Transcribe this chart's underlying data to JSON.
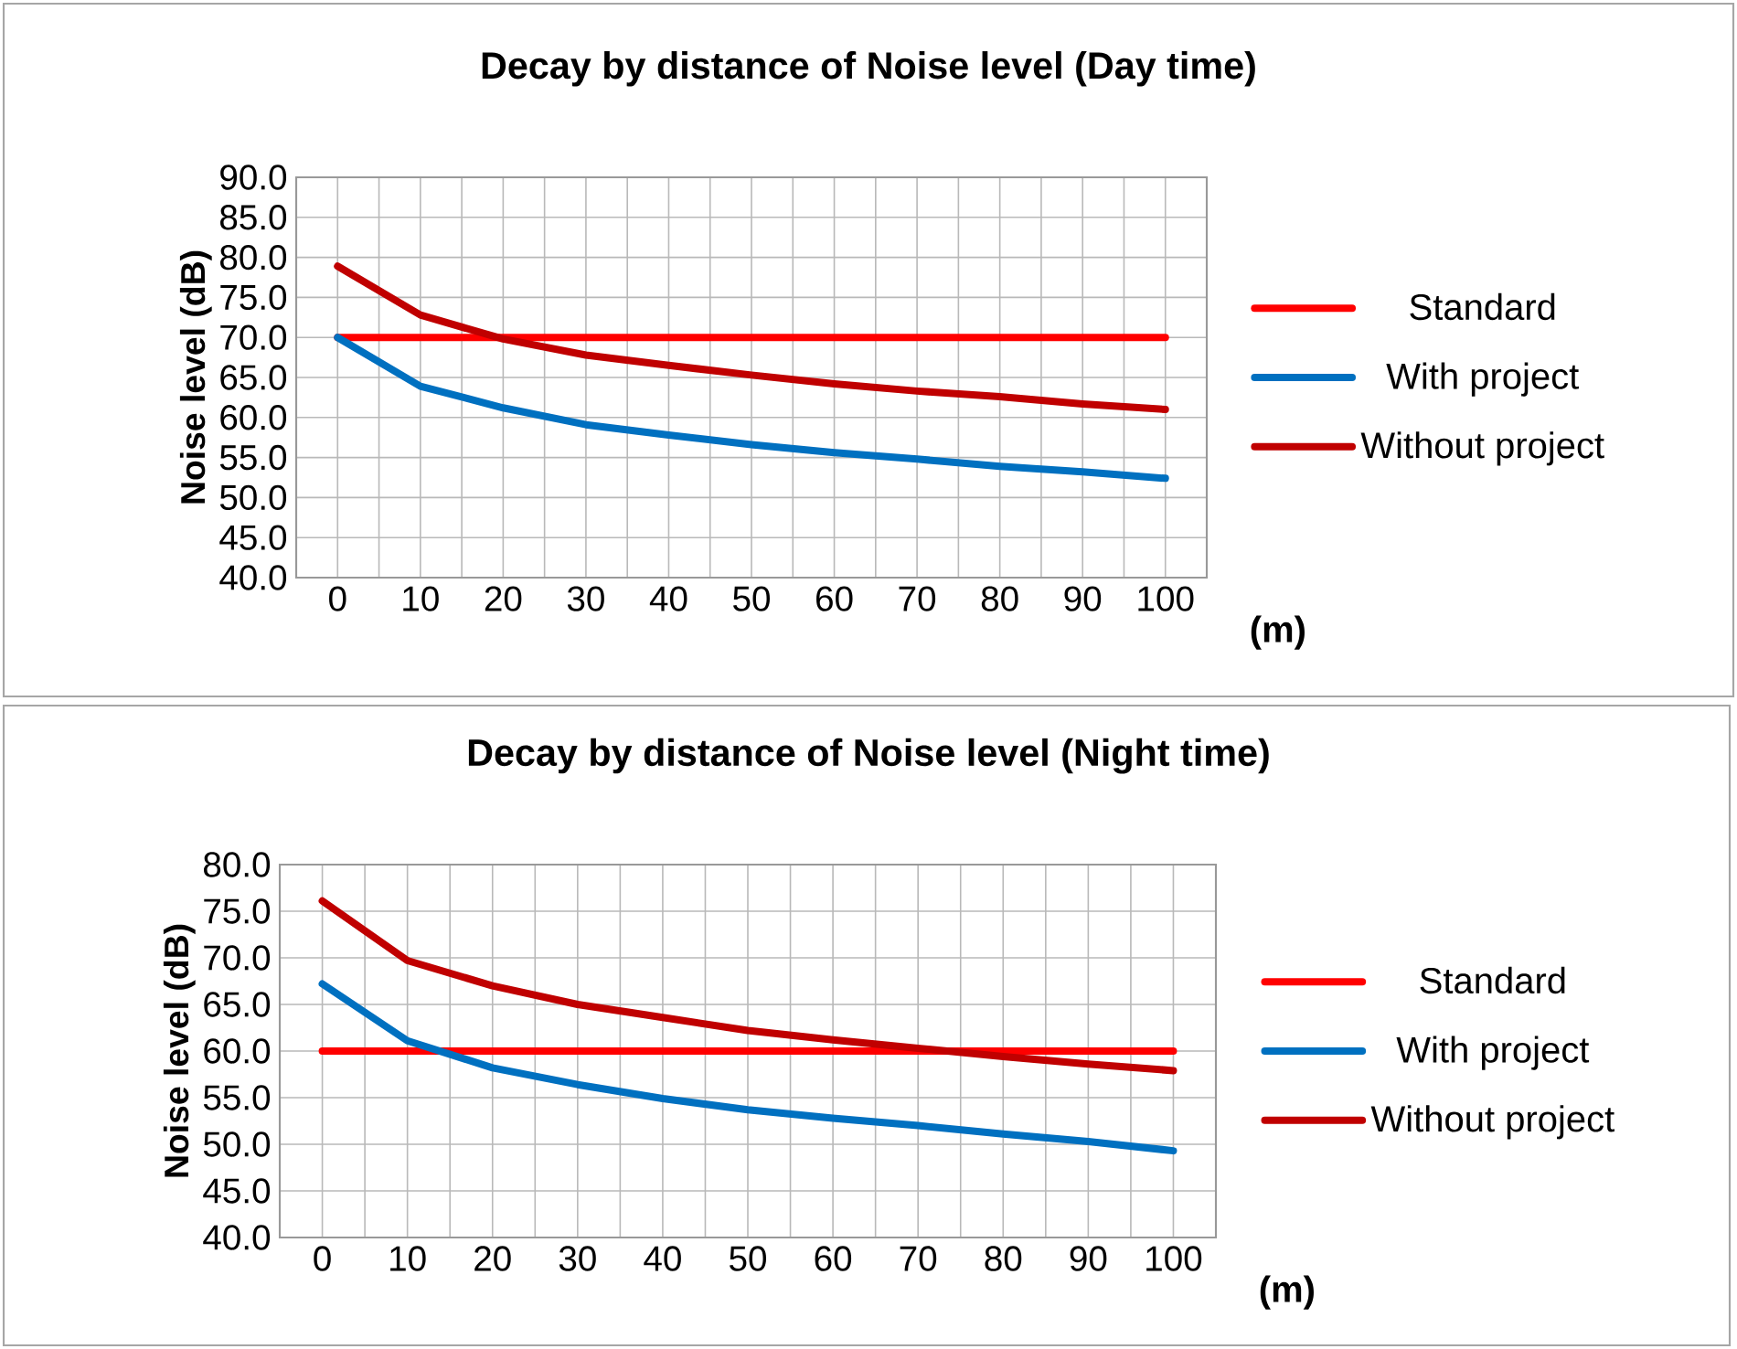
{
  "chart_data": [
    {
      "type": "line",
      "title": "Decay by distance of Noise level (Day time)",
      "xlabel": "(m)",
      "ylabel": "Noise level (dB)",
      "categories": [
        "0",
        "10",
        "20",
        "30",
        "40",
        "50",
        "60",
        "70",
        "80",
        "90",
        "100"
      ],
      "ylim": [
        40,
        90
      ],
      "yticks": [
        {
          "value": 40,
          "label": "40.0"
        },
        {
          "value": 45,
          "label": "45.0"
        },
        {
          "value": 50,
          "label": "50.0"
        },
        {
          "value": 55,
          "label": "55.0"
        },
        {
          "value": 60,
          "label": "60.0"
        },
        {
          "value": 65,
          "label": "65.0"
        },
        {
          "value": 70,
          "label": "70.0"
        },
        {
          "value": 75,
          "label": "75.0"
        },
        {
          "value": 80,
          "label": "80.0"
        },
        {
          "value": 85,
          "label": "85.0"
        },
        {
          "value": 90,
          "label": "90.0"
        }
      ],
      "grid": true,
      "legend": "right",
      "marker": "none",
      "line_style": "solid",
      "series": [
        {
          "name": "Standard",
          "color": "#ff0000",
          "values": [
            70,
            70,
            70,
            70,
            70,
            70,
            70,
            70,
            70,
            70,
            70
          ]
        },
        {
          "name": "With project",
          "color": "#0070c0",
          "values": [
            70,
            63.9,
            61.2,
            59.1,
            57.8,
            56.6,
            55.6,
            54.8,
            53.9,
            53.2,
            52.4
          ]
        },
        {
          "name": "Without project",
          "color": "#c00000",
          "values": [
            78.9,
            72.8,
            69.8,
            67.8,
            66.5,
            65.3,
            64.2,
            63.3,
            62.6,
            61.7,
            61.0
          ]
        }
      ]
    },
    {
      "type": "line",
      "title": "Decay by distance of Noise level (Night time)",
      "xlabel": "(m)",
      "ylabel": "Noise level (dB)",
      "categories": [
        "0",
        "10",
        "20",
        "30",
        "40",
        "50",
        "60",
        "70",
        "80",
        "90",
        "100"
      ],
      "ylim": [
        40,
        80
      ],
      "yticks": [
        {
          "value": 40,
          "label": "40.0"
        },
        {
          "value": 45,
          "label": "45.0"
        },
        {
          "value": 50,
          "label": "50.0"
        },
        {
          "value": 55,
          "label": "55.0"
        },
        {
          "value": 60,
          "label": "60.0"
        },
        {
          "value": 65,
          "label": "65.0"
        },
        {
          "value": 70,
          "label": "70.0"
        },
        {
          "value": 75,
          "label": "75.0"
        },
        {
          "value": 80,
          "label": "80.0"
        }
      ],
      "grid": true,
      "legend": "right",
      "marker": "none",
      "line_style": "solid",
      "series": [
        {
          "name": "Standard",
          "color": "#ff0000",
          "values": [
            60,
            60,
            60,
            60,
            60,
            60,
            60,
            60,
            60,
            60,
            60
          ]
        },
        {
          "name": "With project",
          "color": "#0070c0",
          "values": [
            67.2,
            61.1,
            58.2,
            56.4,
            54.9,
            53.7,
            52.8,
            52.0,
            51.1,
            50.3,
            49.3
          ]
        },
        {
          "name": "Without project",
          "color": "#c00000",
          "values": [
            76.1,
            69.7,
            67.0,
            65.0,
            63.6,
            62.2,
            61.2,
            60.3,
            59.4,
            58.6,
            57.9
          ]
        }
      ]
    }
  ]
}
